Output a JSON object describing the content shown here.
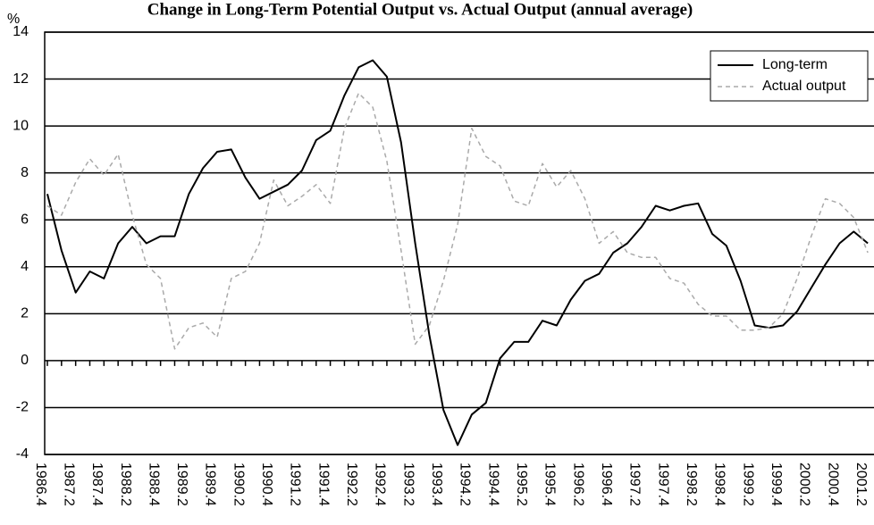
{
  "chart_data": {
    "type": "line",
    "title": "Change in Long-Term Potential Output vs. Actual Output (annual average)",
    "y_label": "%",
    "categories": [
      "1986.4",
      null,
      "1987.2",
      null,
      "1987.4",
      null,
      "1988.2",
      null,
      "1988.4",
      null,
      "1989.2",
      null,
      "1989.4",
      null,
      "1990.2",
      null,
      "1990.4",
      null,
      "1991.2",
      null,
      "1991.4",
      null,
      "1992.2",
      null,
      "1992.4",
      null,
      "1993.2",
      null,
      "1993.4",
      null,
      "1994.2",
      null,
      "1994.4",
      null,
      "1995.2",
      null,
      "1995.4",
      null,
      "1996.2",
      null,
      "1996.4",
      null,
      "1997.2",
      null,
      "1997.4",
      null,
      "1998.2",
      null,
      "1998.4",
      null,
      "1999.2",
      null,
      "1999.4",
      null,
      "2000.2",
      null,
      "2000.4",
      null,
      "2001.2"
    ],
    "series": [
      {
        "name": "Long-term",
        "color": "#000000",
        "dashed": false,
        "values": [
          7.1,
          4.7,
          2.9,
          3.8,
          3.5,
          5.0,
          5.7,
          5.0,
          5.3,
          5.3,
          7.1,
          8.2,
          8.9,
          9.0,
          7.8,
          6.9,
          7.2,
          7.5,
          8.1,
          9.4,
          9.8,
          11.3,
          12.5,
          12.8,
          12.1,
          9.3,
          5.0,
          1.1,
          -2.1,
          -3.6,
          -2.3,
          -1.8,
          0.1,
          0.8,
          0.8,
          1.7,
          1.5,
          2.6,
          3.4,
          3.7,
          4.6,
          5.0,
          5.7,
          6.6,
          6.4,
          6.6,
          6.7,
          5.4,
          4.9,
          3.4,
          1.5,
          1.4,
          1.5,
          2.1,
          3.1,
          4.1,
          5.0,
          5.5,
          5.0
        ]
      },
      {
        "name": "Actual output",
        "color": "#aaaaaa",
        "dashed": true,
        "values": [
          6.6,
          6.2,
          7.6,
          8.6,
          7.9,
          8.8,
          6.2,
          4.1,
          3.5,
          0.5,
          1.4,
          1.6,
          1.0,
          3.5,
          3.8,
          5.0,
          7.7,
          6.6,
          7.0,
          7.5,
          6.7,
          9.9,
          11.4,
          10.8,
          8.5,
          4.7,
          0.7,
          1.5,
          3.4,
          5.8,
          9.9,
          8.7,
          8.3,
          6.8,
          6.6,
          8.4,
          7.4,
          8.1,
          6.9,
          5.0,
          5.5,
          4.6,
          4.4,
          4.4,
          3.5,
          3.3,
          2.4,
          1.9,
          1.9,
          1.3,
          1.3,
          1.4,
          2.0,
          3.5,
          5.3,
          6.9,
          6.7,
          6.1,
          4.6
        ]
      }
    ],
    "ylim": [
      -4,
      14
    ],
    "yticks": [
      -4,
      -2,
      0,
      2,
      4,
      6,
      8,
      10,
      12,
      14
    ],
    "grid": true,
    "legend": "top-right"
  }
}
